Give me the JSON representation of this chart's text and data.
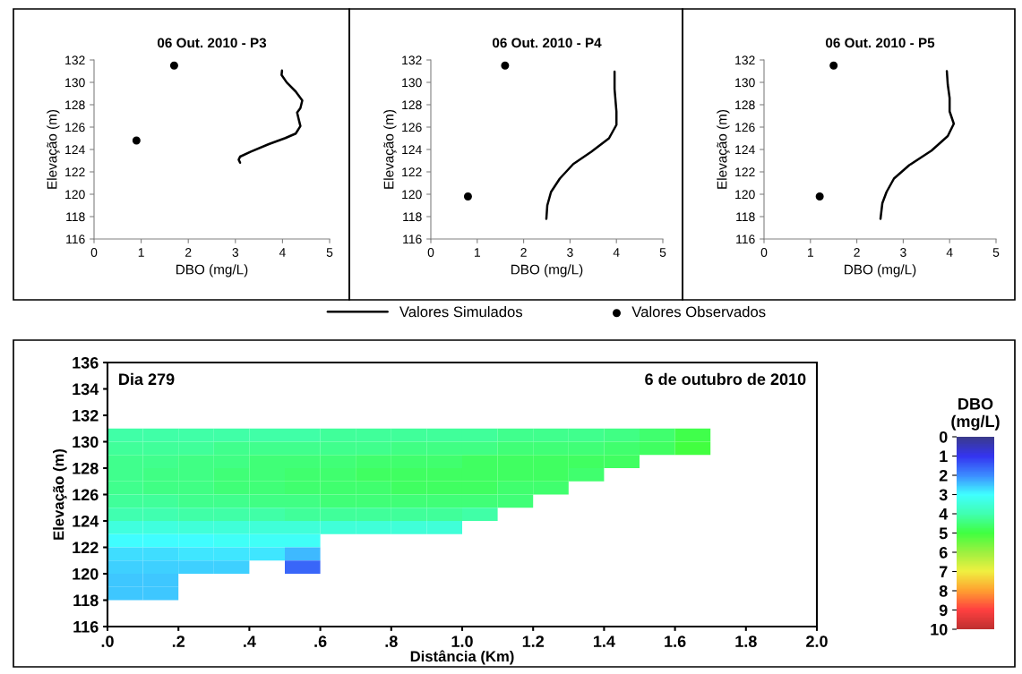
{
  "chart_data": [
    {
      "type": "line",
      "title": "06 Out. 2010 - P3",
      "xlabel": "DBO (mg/L)",
      "ylabel": "Elevação (m)",
      "xlim": [
        0,
        5
      ],
      "ylim": [
        116,
        132
      ],
      "xticks": [
        0,
        1,
        2,
        3,
        4,
        5
      ],
      "yticks": [
        116,
        118,
        120,
        122,
        124,
        126,
        128,
        130,
        132
      ],
      "grid": false,
      "series": [
        {
          "type": "line",
          "color": "#000000",
          "x": [
            3.99,
            3.98,
            4.09,
            4.28,
            4.42,
            4.38,
            4.31,
            4.34,
            4.38,
            4.28,
            4.06,
            3.71,
            3.33,
            3.1,
            3.07,
            3.1
          ],
          "values": [
            131.06,
            130.66,
            129.99,
            129.18,
            128.38,
            127.7,
            127.3,
            126.77,
            126.09,
            125.42,
            125.02,
            124.48,
            123.81,
            123.36,
            123.09,
            122.82
          ]
        },
        {
          "type": "scatter",
          "color": "#000000",
          "x": [
            1.7,
            0.9
          ],
          "values": [
            131.5,
            124.8
          ]
        }
      ]
    },
    {
      "type": "line",
      "title": "06 Out. 2010 - P4",
      "xlabel": "DBO (mg/L)",
      "ylabel": "Elevação (m)",
      "xlim": [
        0,
        5
      ],
      "ylim": [
        116,
        132
      ],
      "xticks": [
        0,
        1,
        2,
        3,
        4,
        5
      ],
      "yticks": [
        116,
        118,
        120,
        122,
        124,
        126,
        128,
        130,
        132
      ],
      "grid": false,
      "legend": "bottom",
      "series": [
        {
          "name": "Valores Simulados",
          "type": "line",
          "color": "#000000",
          "x": [
            3.96,
            3.96,
            4.0,
            4.0,
            3.84,
            3.46,
            3.07,
            2.78,
            2.59,
            2.51,
            2.49
          ],
          "values": [
            130.96,
            129.4,
            127.4,
            126.2,
            125.0,
            123.8,
            122.7,
            121.4,
            120.2,
            119.0,
            117.8
          ]
        },
        {
          "name": "Valores Observados",
          "type": "scatter",
          "color": "#000000",
          "x": [
            1.6,
            0.8
          ],
          "values": [
            131.5,
            119.8
          ]
        }
      ]
    },
    {
      "type": "line",
      "title": "06 Out. 2010 - P5",
      "xlabel": "DBO (mg/L)",
      "ylabel": "Elevação (m)",
      "xlim": [
        0,
        5
      ],
      "ylim": [
        116,
        132
      ],
      "xticks": [
        0,
        1,
        2,
        3,
        4,
        5
      ],
      "yticks": [
        116,
        118,
        120,
        122,
        124,
        126,
        128,
        130,
        132
      ],
      "grid": false,
      "series": [
        {
          "type": "line",
          "color": "#000000",
          "x": [
            3.94,
            3.96,
            4.0,
            4.0,
            4.09,
            3.96,
            3.61,
            3.13,
            2.8,
            2.64,
            2.55,
            2.51
          ],
          "values": [
            131.0,
            129.8,
            128.6,
            127.4,
            126.3,
            125.2,
            123.9,
            122.6,
            121.4,
            120.2,
            119.2,
            117.8
          ]
        },
        {
          "type": "scatter",
          "color": "#000000",
          "x": [
            1.5,
            1.2
          ],
          "values": [
            131.5,
            119.8
          ]
        }
      ]
    },
    {
      "type": "heatmap",
      "xlabel": "Distância (Km)",
      "ylabel": "Elevação (m)",
      "clabel": "DBO\n(mg/L)",
      "annotations": [
        "Dia 279",
        "6 de outubro de 2010"
      ],
      "xlim": [
        0,
        2
      ],
      "ylim": [
        116,
        136
      ],
      "xticks": [
        {
          "value": 0,
          "label": ".0"
        },
        {
          "value": 0.2,
          "label": ".2"
        },
        {
          "value": 0.4,
          "label": ".4"
        },
        {
          "value": 0.6,
          "label": ".6"
        },
        {
          "value": 0.8,
          "label": ".8"
        },
        {
          "value": 1.0,
          "label": "1.0"
        },
        {
          "value": 1.2,
          "label": "1.2"
        },
        {
          "value": 1.4,
          "label": "1.4"
        },
        {
          "value": 1.6,
          "label": "1.6"
        },
        {
          "value": 1.8,
          "label": "1.8"
        },
        {
          "value": 2.0,
          "label": "2.0"
        }
      ],
      "yticks": [
        116,
        118,
        120,
        122,
        124,
        126,
        128,
        130,
        132,
        134,
        136
      ],
      "clim": [
        0,
        10
      ],
      "cticks": [
        0,
        1,
        2,
        3,
        4,
        5,
        6,
        7,
        8,
        9,
        10
      ],
      "x": [
        0.05,
        0.15,
        0.25,
        0.35,
        0.45,
        0.55,
        0.65,
        0.75,
        0.85,
        0.95,
        1.05,
        1.15,
        1.25,
        1.35,
        1.45,
        1.55,
        1.65
      ],
      "y": [
        130.5,
        129.5,
        128.5,
        127.5,
        126.5,
        125.5,
        124.5,
        123.5,
        122.5,
        121.5,
        120.5,
        119.5,
        118.5
      ],
      "cells": [
        [
          4.1,
          4.1,
          4.1,
          4.1,
          4.1,
          4.1,
          4.2,
          4.2,
          4.2,
          4.2,
          4.2,
          4.3,
          4.3,
          4.3,
          4.4,
          4.6,
          4.9
        ],
        [
          4.2,
          4.2,
          4.2,
          4.3,
          4.3,
          4.3,
          4.3,
          4.3,
          4.4,
          4.4,
          4.4,
          4.5,
          4.5,
          4.5,
          4.6,
          4.7,
          5.0
        ],
        [
          4.3,
          4.3,
          4.4,
          4.4,
          4.5,
          4.5,
          4.5,
          4.6,
          4.6,
          4.6,
          4.7,
          4.7,
          4.7,
          4.7,
          4.7,
          null,
          null
        ],
        [
          4.3,
          4.4,
          4.4,
          4.5,
          4.5,
          4.6,
          4.6,
          4.7,
          4.7,
          4.7,
          4.7,
          4.7,
          4.7,
          4.6,
          null,
          null,
          null
        ],
        [
          4.3,
          4.4,
          4.4,
          4.5,
          4.5,
          4.6,
          4.6,
          4.6,
          4.7,
          4.7,
          4.7,
          4.6,
          4.6,
          null,
          null,
          null,
          null
        ],
        [
          4.2,
          4.2,
          4.3,
          4.3,
          4.4,
          4.4,
          4.5,
          4.5,
          4.5,
          4.5,
          4.5,
          4.5,
          null,
          null,
          null,
          null,
          null
        ],
        [
          4.0,
          4.0,
          4.1,
          4.1,
          4.1,
          4.2,
          4.2,
          4.2,
          4.2,
          4.2,
          4.1,
          null,
          null,
          null,
          null,
          null,
          null
        ],
        [
          3.4,
          3.4,
          3.5,
          3.5,
          3.5,
          3.5,
          3.5,
          3.5,
          3.5,
          3.5,
          null,
          null,
          null,
          null,
          null,
          null,
          null
        ],
        [
          3.0,
          3.0,
          3.0,
          3.1,
          3.1,
          3.1,
          null,
          null,
          null,
          null,
          null,
          null,
          null,
          null,
          null,
          null,
          null
        ],
        [
          2.7,
          2.7,
          2.8,
          2.8,
          2.8,
          2.4,
          null,
          null,
          null,
          null,
          null,
          null,
          null,
          null,
          null,
          null,
          null
        ],
        [
          2.6,
          2.6,
          2.6,
          2.6,
          null,
          1.6,
          null,
          null,
          null,
          null,
          null,
          null,
          null,
          null,
          null,
          null,
          null
        ],
        [
          2.5,
          2.5,
          null,
          null,
          null,
          null,
          null,
          null,
          null,
          null,
          null,
          null,
          null,
          null,
          null,
          null,
          null
        ],
        [
          2.5,
          2.5,
          null,
          null,
          null,
          null,
          null,
          null,
          null,
          null,
          null,
          null,
          null,
          null,
          null,
          null,
          null
        ]
      ]
    }
  ]
}
